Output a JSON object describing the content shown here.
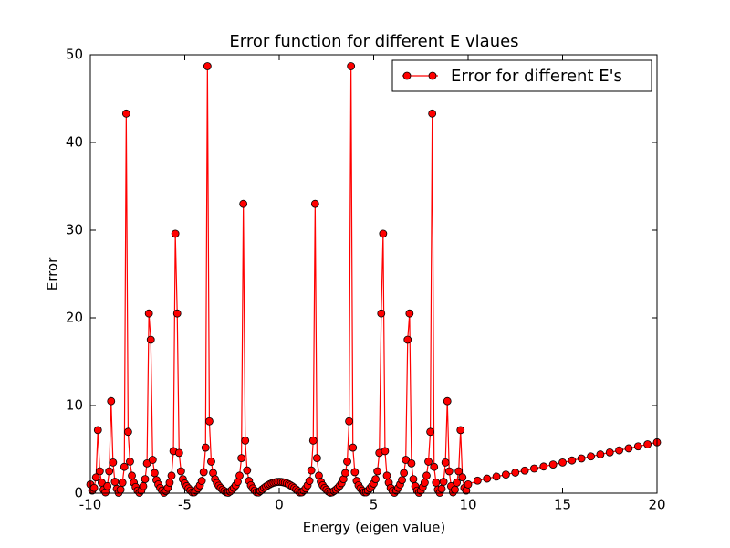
{
  "chart_data": {
    "type": "line",
    "title": "Error function for different E vlaues",
    "xlabel": "Energy (eigen value)",
    "ylabel": "Error",
    "xlim": [
      -10,
      20
    ],
    "ylim": [
      0,
      50
    ],
    "xticks": [
      -10,
      -5,
      0,
      5,
      10,
      15,
      20
    ],
    "yticks": [
      0,
      10,
      20,
      30,
      40,
      50
    ],
    "legend": "upper right",
    "x": [
      -10,
      -9.9,
      -9.8,
      -9.7,
      -9.6,
      -9.5,
      -9.4,
      -9.3,
      -9.2,
      -9.1,
      -9,
      -8.9,
      -8.8,
      -8.7,
      -8.6,
      -8.5,
      -8.4,
      -8.3,
      -8.2,
      -8.1,
      -8,
      -7.9,
      -7.8,
      -7.7,
      -7.6,
      -7.5,
      -7.4,
      -7.3,
      -7.2,
      -7.1,
      -7,
      -6.9,
      -6.8,
      -6.7,
      -6.6,
      -6.5,
      -6.4,
      -6.3,
      -6.2,
      -6.1,
      -6,
      -5.9,
      -5.8,
      -5.7,
      -5.6,
      -5.5,
      -5.4,
      -5.3,
      -5.2,
      -5.1,
      -5,
      -4.9,
      -4.8,
      -4.7,
      -4.6,
      -4.5,
      -4.4,
      -4.3,
      -4.2,
      -4.1,
      -4,
      -3.9,
      -3.8,
      -3.7,
      -3.6,
      -3.5,
      -3.4,
      -3.3,
      -3.2,
      -3.1,
      -3,
      -2.9,
      -2.8,
      -2.7,
      -2.6,
      -2.5,
      -2.4,
      -2.3,
      -2.2,
      -2.1,
      -2,
      -1.9,
      -1.8,
      -1.7,
      -1.6,
      -1.5,
      -1.4,
      -1.3,
      -1.2,
      -1.1,
      -1,
      -0.9,
      -0.8,
      -0.7,
      -0.6,
      -0.5,
      -0.4,
      -0.3,
      -0.2,
      -0.1,
      0,
      0.1,
      0.2,
      0.3,
      0.4,
      0.5,
      0.6,
      0.7,
      0.8,
      0.9,
      1,
      1.1,
      1.2,
      1.3,
      1.4,
      1.5,
      1.6,
      1.7,
      1.8,
      1.9,
      2,
      2.1,
      2.2,
      2.3,
      2.4,
      2.5,
      2.6,
      2.7,
      2.8,
      2.9,
      3,
      3.1,
      3.2,
      3.3,
      3.4,
      3.5,
      3.6,
      3.7,
      3.8,
      3.9,
      4,
      4.1,
      4.2,
      4.3,
      4.4,
      4.5,
      4.6,
      4.7,
      4.8,
      4.9,
      5,
      5.1,
      5.2,
      5.3,
      5.4,
      5.5,
      5.6,
      5.7,
      5.8,
      5.9,
      6,
      6.1,
      6.2,
      6.3,
      6.4,
      6.5,
      6.6,
      6.7,
      6.8,
      6.9,
      7,
      7.1,
      7.2,
      7.3,
      7.4,
      7.5,
      7.6,
      7.7,
      7.8,
      7.9,
      8,
      8.1,
      8.2,
      8.3,
      8.4,
      8.5,
      8.6,
      8.7,
      8.8,
      8.9,
      9,
      9.1,
      9.2,
      9.3,
      9.4,
      9.5,
      9.6,
      9.7,
      9.8,
      9.9,
      10,
      10.5,
      11,
      11.5,
      12,
      12.5,
      13,
      13.5,
      14,
      14.5,
      15,
      15.5,
      16,
      16.5,
      17,
      17.5,
      18,
      18.5,
      19,
      19.5,
      20
    ],
    "series": [
      {
        "name": "Error for different E's",
        "color": "#ff0000",
        "marker_edge": "#000000",
        "values": [
          1.0,
          0.3,
          0.6,
          1.8,
          7.2,
          2.5,
          1.2,
          0.4,
          0.1,
          0.8,
          2.5,
          10.5,
          3.5,
          1.3,
          0.5,
          0.05,
          0.4,
          1.2,
          3.0,
          43.3,
          7.0,
          3.6,
          2.0,
          1.2,
          0.7,
          0.3,
          0.05,
          0.3,
          0.8,
          1.6,
          3.4,
          20.5,
          17.5,
          3.8,
          2.3,
          1.5,
          1.0,
          0.6,
          0.3,
          0.05,
          0.25,
          0.6,
          1.2,
          2.0,
          4.8,
          29.6,
          20.5,
          4.6,
          2.5,
          1.6,
          1.1,
          0.8,
          0.55,
          0.3,
          0.1,
          0.1,
          0.3,
          0.55,
          0.9,
          1.4,
          2.4,
          5.2,
          48.7,
          8.2,
          3.6,
          2.3,
          1.6,
          1.15,
          0.85,
          0.6,
          0.4,
          0.25,
          0.1,
          0.05,
          0.2,
          0.4,
          0.6,
          0.9,
          1.3,
          2.0,
          4.0,
          33,
          6.0,
          2.6,
          1.4,
          0.9,
          0.55,
          0.3,
          0.1,
          0.08,
          0.25,
          0.43,
          0.6,
          0.76,
          0.9,
          1.02,
          1.12,
          1.2,
          1.25,
          1.29,
          1.3,
          1.29,
          1.25,
          1.2,
          1.12,
          1.02,
          0.9,
          0.76,
          0.6,
          0.43,
          0.25,
          0.08,
          0.1,
          0.3,
          0.55,
          0.9,
          1.4,
          2.6,
          6.0,
          33,
          4.0,
          2.0,
          1.3,
          0.9,
          0.6,
          0.4,
          0.2,
          0.05,
          0.1,
          0.25,
          0.4,
          0.6,
          0.85,
          1.15,
          1.6,
          2.3,
          3.6,
          8.2,
          48.7,
          5.2,
          2.4,
          1.4,
          0.9,
          0.55,
          0.3,
          0.1,
          0.1,
          0.3,
          0.55,
          0.8,
          1.1,
          1.6,
          2.5,
          4.6,
          20.5,
          29.6,
          4.8,
          2.0,
          1.2,
          0.6,
          0.25,
          0.05,
          0.3,
          0.6,
          1.0,
          1.5,
          2.3,
          3.8,
          17.5,
          20.5,
          3.4,
          1.6,
          0.8,
          0.3,
          0.05,
          0.3,
          0.7,
          1.2,
          2.0,
          3.6,
          7.0,
          43.3,
          3.0,
          1.2,
          0.4,
          0.05,
          0.5,
          1.3,
          3.5,
          10.5,
          2.5,
          0.8,
          0.1,
          0.4,
          1.2,
          2.5,
          7.2,
          1.8,
          0.6,
          0.3,
          1.0,
          1.43,
          1.66,
          1.89,
          2.12,
          2.35,
          2.58,
          2.81,
          3.04,
          3.27,
          3.5,
          3.73,
          3.96,
          4.19,
          4.42,
          4.65,
          4.88,
          5.11,
          5.34,
          5.57,
          5.8
        ]
      }
    ]
  }
}
